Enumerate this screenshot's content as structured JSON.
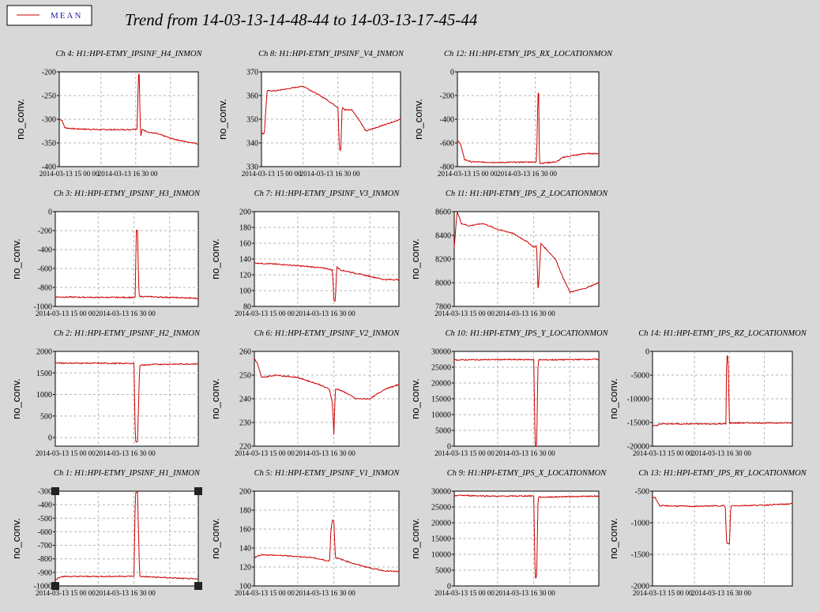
{
  "page": {
    "title": "Trend from 14-03-13-14-48-44 to 14-03-13-17-45-44",
    "legend_label": "MEAN",
    "line_color": "#cc0000",
    "background": "#d8d8d8"
  },
  "chart_data": [
    {
      "type": "line",
      "title": "Ch 4: H1:HPI-ETMY_IPSINF_H4_INMON",
      "ylabel": "no_conv.",
      "ylim": [
        -400,
        -200
      ],
      "yticks": [
        -200,
        -250,
        -300,
        -350,
        -400
      ],
      "xticks": [
        "2014-03-13 15 00 00",
        "2014-03-13 16 30 00"
      ],
      "x": [
        0,
        0.02,
        0.04,
        0.1,
        0.3,
        0.5,
        0.56,
        0.57,
        0.575,
        0.585,
        0.595,
        0.6,
        0.65,
        0.7,
        0.8,
        0.9,
        0.97,
        1
      ],
      "values": [
        -300,
        -302,
        -318,
        -320,
        -322,
        -322,
        -320,
        -205,
        -205,
        -340,
        -322,
        -322,
        -328,
        -330,
        -340,
        -347,
        -350,
        -352
      ]
    },
    {
      "type": "line",
      "title": "Ch 8: H1:HPI-ETMY_IPSINF_V4_INMON",
      "ylabel": "no_conv.",
      "ylim": [
        330,
        370
      ],
      "yticks": [
        370,
        360,
        350,
        340,
        330
      ],
      "xticks": [
        "2014-03-13 15 00 00",
        "2014-03-13 16 30 00"
      ],
      "x": [
        0,
        0.02,
        0.04,
        0.1,
        0.3,
        0.45,
        0.55,
        0.56,
        0.57,
        0.58,
        0.6,
        0.65,
        0.7,
        0.75,
        0.8,
        0.9,
        1
      ],
      "values": [
        344,
        344,
        362,
        362,
        364,
        359,
        355,
        338,
        336,
        355,
        354,
        354,
        350,
        345,
        346,
        348,
        350
      ]
    },
    {
      "type": "line",
      "title": "Ch 12: H1:HPI-ETMY_IPS_RX_LOCATIONMON",
      "ylabel": "no_conv.",
      "ylim": [
        -800,
        0
      ],
      "yticks": [
        0,
        -200,
        -400,
        -600,
        -800
      ],
      "xticks": [
        "2014-03-13 15 00 00",
        "2014-03-13 16 30 00"
      ],
      "x": [
        0,
        0.02,
        0.05,
        0.1,
        0.3,
        0.55,
        0.56,
        0.57,
        0.575,
        0.58,
        0.6,
        0.7,
        0.75,
        0.8,
        0.9,
        1
      ],
      "values": [
        -580,
        -600,
        -740,
        -760,
        -765,
        -760,
        -760,
        -180,
        -180,
        -770,
        -770,
        -760,
        -720,
        -710,
        -690,
        -690
      ]
    },
    {
      "type": "line",
      "title": "Ch 3: H1:HPI-ETMY_IPSINF_H3_INMON",
      "ylabel": "no_conv.",
      "ylim": [
        -1000,
        0
      ],
      "yticks": [
        0,
        -200,
        -400,
        -600,
        -800,
        -1000
      ],
      "xticks": [
        "2014-03-13 15 00 00",
        "2014-03-13 16 30 00"
      ],
      "x": [
        0,
        0.3,
        0.56,
        0.565,
        0.575,
        0.585,
        0.6,
        0.8,
        1
      ],
      "values": [
        -900,
        -905,
        -905,
        -200,
        -200,
        -890,
        -895,
        -905,
        -915
      ]
    },
    {
      "type": "line",
      "title": "Ch 7: H1:HPI-ETMY_IPSINF_V3_INMON",
      "ylabel": "no_conv.",
      "ylim": [
        80,
        200
      ],
      "yticks": [
        200,
        180,
        160,
        140,
        120,
        100,
        80
      ],
      "xticks": [
        "2014-03-13 15 00 00",
        "2014-03-13 16 30 00"
      ],
      "x": [
        0,
        0.2,
        0.4,
        0.5,
        0.54,
        0.55,
        0.56,
        0.57,
        0.6,
        0.7,
        0.8,
        0.9,
        1
      ],
      "values": [
        135,
        133,
        130,
        128,
        126,
        88,
        87,
        130,
        126,
        122,
        118,
        114,
        114
      ]
    },
    {
      "type": "line",
      "title": "Ch 11: H1:HPI-ETMY_IPS_Z_LOCATIONMON",
      "ylabel": "no_conv.",
      "ylim": [
        7800,
        8600
      ],
      "yticks": [
        8600,
        8400,
        8200,
        8000,
        7800
      ],
      "xticks": [
        "2014-03-13 15 00 00",
        "2014-03-13 16 30 00"
      ],
      "x": [
        0,
        0.02,
        0.05,
        0.1,
        0.2,
        0.3,
        0.4,
        0.5,
        0.55,
        0.57,
        0.58,
        0.6,
        0.7,
        0.75,
        0.8,
        0.9,
        1
      ],
      "values": [
        8300,
        8600,
        8500,
        8480,
        8500,
        8450,
        8420,
        8350,
        8300,
        8310,
        7920,
        8330,
        8200,
        8050,
        7920,
        7950,
        8000
      ]
    },
    {
      "type": "line",
      "title": "Ch 2: H1:HPI-ETMY_IPSINF_H2_INMON",
      "ylabel": "no_conv.",
      "ylim": [
        -200,
        2000
      ],
      "yticks": [
        2000,
        1500,
        1000,
        500,
        0
      ],
      "xticks": [
        "2014-03-13 15 00 00",
        "2014-03-13 16 30 00"
      ],
      "x": [
        0,
        0.3,
        0.55,
        0.56,
        0.575,
        0.59,
        0.6,
        0.7,
        1
      ],
      "values": [
        1730,
        1725,
        1720,
        -100,
        -100,
        1680,
        1680,
        1700,
        1710
      ]
    },
    {
      "type": "line",
      "title": "Ch 6: H1:HPI-ETMY_IPSINF_V2_INMON",
      "ylabel": "no_conv.",
      "ylim": [
        220,
        260
      ],
      "yticks": [
        260,
        250,
        240,
        230,
        220
      ],
      "xticks": [
        "2014-03-13 15 00 00",
        "2014-03-13 16 30 00"
      ],
      "x": [
        0,
        0.02,
        0.05,
        0.15,
        0.3,
        0.45,
        0.52,
        0.54,
        0.55,
        0.56,
        0.58,
        0.65,
        0.7,
        0.8,
        0.9,
        1
      ],
      "values": [
        257,
        255,
        249,
        250,
        249,
        246,
        244,
        238,
        225,
        244,
        244,
        242,
        240,
        240,
        244,
        246
      ]
    },
    {
      "type": "line",
      "title": "Ch 10: H1:HPI-ETMY_IPS_Y_LOCATIONMON",
      "ylabel": "no_conv.",
      "ylim": [
        0,
        30000
      ],
      "yticks": [
        30000,
        25000,
        20000,
        15000,
        10000,
        5000,
        0
      ],
      "xticks": [
        "2014-03-13 15 00 00",
        "2014-03-13 16 30 00"
      ],
      "x": [
        0,
        0.3,
        0.55,
        0.56,
        0.57,
        0.58,
        0.6,
        1
      ],
      "values": [
        27300,
        27400,
        27400,
        0,
        0,
        27300,
        27300,
        27500
      ]
    },
    {
      "type": "line",
      "title": "Ch 14: H1:HPI-ETMY_IPS_RZ_LOCATIONMON",
      "ylabel": "no_conv.",
      "ylim": [
        -20000,
        0
      ],
      "yticks": [
        0,
        -5000,
        -10000,
        -15000,
        -20000
      ],
      "xticks": [
        "2014-03-13 15 00 00",
        "2014-03-13 16 30 00"
      ],
      "x": [
        0,
        0.04,
        0.05,
        0.3,
        0.5,
        0.525,
        0.53,
        0.54,
        0.55,
        0.56,
        0.7,
        1
      ],
      "values": [
        -15600,
        -15600,
        -15300,
        -15300,
        -15300,
        -15300,
        -1000,
        -1000,
        -15100,
        -15100,
        -15100,
        -15100
      ]
    },
    {
      "type": "line",
      "title": "Ch 1: H1:HPI-ETMY_IPSINF_H1_INMON",
      "ylabel": "no_conv.",
      "ylim": [
        -1000,
        -300
      ],
      "yticks": [
        -300,
        -400,
        -500,
        -600,
        -700,
        -800,
        -900,
        -1000
      ],
      "xticks": [
        "2014-03-13 15 00 00",
        "2014-03-13 16 30 00"
      ],
      "x": [
        0,
        0.02,
        0.04,
        0.3,
        0.55,
        0.56,
        0.575,
        0.59,
        0.6,
        0.8,
        1
      ],
      "values": [
        -960,
        -940,
        -930,
        -930,
        -928,
        -310,
        -310,
        -930,
        -930,
        -940,
        -950
      ]
    },
    {
      "type": "line",
      "title": "Ch 5: H1:HPI-ETMY_IPSINF_V1_INMON",
      "ylabel": "no_conv.",
      "ylim": [
        100,
        200
      ],
      "yticks": [
        200,
        180,
        160,
        140,
        120,
        100
      ],
      "xticks": [
        "2014-03-13 15 00 00",
        "2014-03-13 16 30 00"
      ],
      "x": [
        0,
        0.05,
        0.2,
        0.4,
        0.52,
        0.53,
        0.54,
        0.55,
        0.56,
        0.6,
        0.7,
        0.8,
        0.9,
        1
      ],
      "values": [
        130,
        133,
        132,
        130,
        126,
        160,
        170,
        168,
        130,
        128,
        123,
        119,
        116,
        115
      ]
    },
    {
      "type": "line",
      "title": "Ch 9: H1:HPI-ETMY_IPS_X_LOCATIONMON",
      "ylabel": "no_conv.",
      "ylim": [
        0,
        30000
      ],
      "yticks": [
        30000,
        25000,
        20000,
        15000,
        10000,
        5000,
        0
      ],
      "xticks": [
        "2014-03-13 15 00 00",
        "2014-03-13 16 30 00"
      ],
      "x": [
        0,
        0.02,
        0.3,
        0.55,
        0.56,
        0.57,
        0.58,
        0.6,
        0.8,
        1
      ],
      "values": [
        28300,
        28700,
        28400,
        28500,
        2500,
        2500,
        28200,
        28100,
        28300,
        28400
      ]
    },
    {
      "type": "line",
      "title": "Ch 13: H1:HPI-ETMY_IPS_RY_LOCATIONMON",
      "ylabel": "no_conv.",
      "ylim": [
        -2000,
        -500
      ],
      "yticks": [
        -500,
        -1000,
        -1500,
        -2000
      ],
      "xticks": [
        "2014-03-13 15 00 00",
        "2014-03-13 16 30 00"
      ],
      "x": [
        0,
        0.02,
        0.05,
        0.3,
        0.5,
        0.52,
        0.53,
        0.55,
        0.56,
        0.6,
        0.8,
        1
      ],
      "values": [
        -600,
        -600,
        -730,
        -740,
        -730,
        -730,
        -1330,
        -1330,
        -730,
        -730,
        -720,
        -700
      ]
    }
  ]
}
